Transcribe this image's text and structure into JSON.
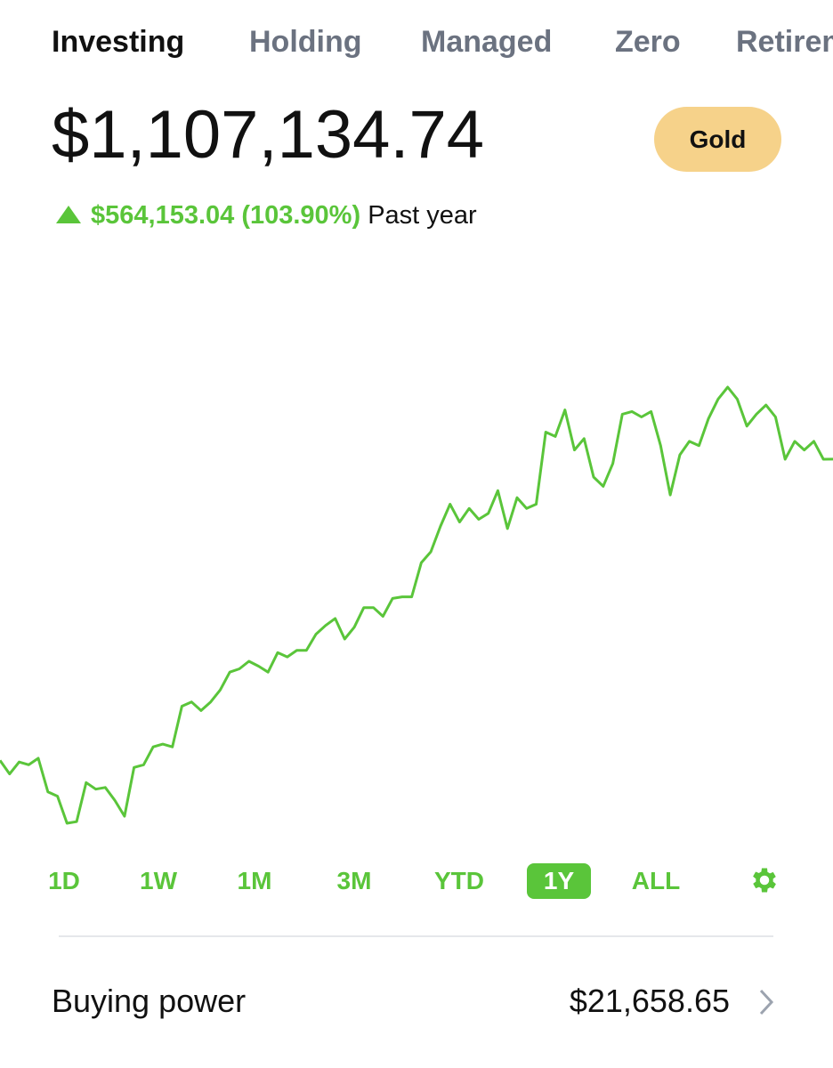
{
  "tabs": [
    "Investing",
    "Holding",
    "Managed",
    "Zero",
    "Retirement"
  ],
  "active_tab": 0,
  "balance": "$1,107,134.74",
  "badge": "Gold",
  "change": "$564,153.04 (103.90%)",
  "period": "Past year",
  "chart_data": {
    "type": "line",
    "color": "#5ac53a",
    "values": [
      551000,
      526000,
      548000,
      543000,
      555000,
      493000,
      485000,
      435000,
      438000,
      510000,
      498000,
      501000,
      477000,
      448000,
      538000,
      543000,
      576000,
      581000,
      576000,
      651000,
      659000,
      643000,
      659000,
      681000,
      714000,
      720000,
      734000,
      725000,
      714000,
      750000,
      742000,
      754000,
      754000,
      784000,
      800000,
      813000,
      775000,
      797000,
      833000,
      833000,
      817000,
      850000,
      853000,
      853000,
      916000,
      936000,
      983000,
      1024000,
      991000,
      1016000,
      996000,
      1007000,
      1049000,
      979000,
      1036000,
      1016000,
      1024000,
      1157000,
      1149000,
      1198000,
      1124000,
      1145000,
      1074000,
      1057000,
      1099000,
      1190000,
      1195000,
      1185000,
      1195000,
      1132000,
      1041000,
      1115000,
      1140000,
      1132000,
      1182000,
      1218000,
      1240000,
      1218000,
      1168000,
      1190000,
      1207000,
      1185000,
      1107000,
      1140000,
      1124000,
      1140000,
      1107000,
      1107134.74
    ]
  },
  "ranges": [
    "1D",
    "1W",
    "1M",
    "3M",
    "YTD",
    "1Y",
    "ALL"
  ],
  "selected_range": 5,
  "buying_power": {
    "label": "Buying power",
    "value": "$21,658.65"
  }
}
